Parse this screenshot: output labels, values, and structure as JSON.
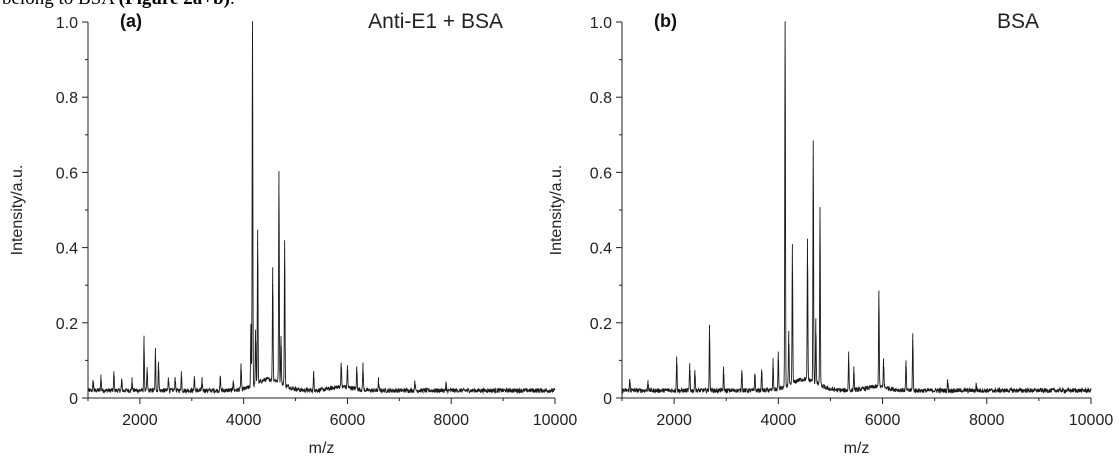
{
  "caption": {
    "text": "belong to BSA ",
    "bold": "(Figure 2a+b)",
    "tail": "."
  },
  "chart_data": [
    {
      "type": "line",
      "panel_label": "(a)",
      "title": "Anti-E1 + BSA",
      "xlabel": "m/z",
      "ylabel": "Intensity/a.u.",
      "xlim": [
        1000,
        10000
      ],
      "ylim": [
        0,
        1.0
      ],
      "x_ticks": [
        2000,
        4000,
        6000,
        8000,
        10000
      ],
      "x_tick_labels": [
        "2000",
        "4000",
        "6000",
        "8000",
        "10000"
      ],
      "y_ticks": [
        0,
        0.2,
        0.4,
        0.6,
        0.8,
        1.0
      ],
      "y_tick_labels": [
        "0",
        "0.2",
        "0.4",
        "0.6",
        "0.8",
        "1.0"
      ],
      "grid": false,
      "baseline": 0.01,
      "peaks": [
        {
          "x": 1100,
          "y": 0.03
        },
        {
          "x": 1250,
          "y": 0.04
        },
        {
          "x": 1500,
          "y": 0.05
        },
        {
          "x": 1650,
          "y": 0.03
        },
        {
          "x": 1850,
          "y": 0.03
        },
        {
          "x": 2080,
          "y": 0.14
        },
        {
          "x": 2140,
          "y": 0.06
        },
        {
          "x": 2300,
          "y": 0.11
        },
        {
          "x": 2360,
          "y": 0.08
        },
        {
          "x": 2550,
          "y": 0.04
        },
        {
          "x": 2680,
          "y": 0.04
        },
        {
          "x": 2800,
          "y": 0.05
        },
        {
          "x": 3050,
          "y": 0.04
        },
        {
          "x": 3200,
          "y": 0.03
        },
        {
          "x": 3550,
          "y": 0.04
        },
        {
          "x": 3800,
          "y": 0.03
        },
        {
          "x": 3950,
          "y": 0.07
        },
        {
          "x": 4140,
          "y": 0.17
        },
        {
          "x": 4170,
          "y": 1.0
        },
        {
          "x": 4230,
          "y": 0.15
        },
        {
          "x": 4270,
          "y": 0.41
        },
        {
          "x": 4560,
          "y": 0.3
        },
        {
          "x": 4680,
          "y": 0.56
        },
        {
          "x": 4720,
          "y": 0.13
        },
        {
          "x": 4790,
          "y": 0.39
        },
        {
          "x": 5350,
          "y": 0.05
        },
        {
          "x": 5880,
          "y": 0.07
        },
        {
          "x": 6000,
          "y": 0.06
        },
        {
          "x": 6180,
          "y": 0.06
        },
        {
          "x": 6300,
          "y": 0.07
        },
        {
          "x": 6600,
          "y": 0.03
        },
        {
          "x": 7300,
          "y": 0.03
        },
        {
          "x": 7900,
          "y": 0.02
        }
      ]
    },
    {
      "type": "line",
      "panel_label": "(b)",
      "title": "BSA",
      "xlabel": "m/z",
      "ylabel": "Intensity/a.u.",
      "xlim": [
        1000,
        10000
      ],
      "ylim": [
        0,
        1.0
      ],
      "x_ticks": [
        2000,
        4000,
        6000,
        8000,
        10000
      ],
      "x_tick_labels": [
        "2000",
        "4000",
        "6000",
        "8000",
        "10000"
      ],
      "y_ticks": [
        0,
        0.2,
        0.4,
        0.6,
        0.8,
        1.0
      ],
      "y_tick_labels": [
        "0",
        "0.2",
        "0.4",
        "0.6",
        "0.8",
        "1.0"
      ],
      "grid": false,
      "baseline": 0.01,
      "peaks": [
        {
          "x": 1150,
          "y": 0.03
        },
        {
          "x": 1500,
          "y": 0.03
        },
        {
          "x": 2050,
          "y": 0.09
        },
        {
          "x": 2300,
          "y": 0.07
        },
        {
          "x": 2400,
          "y": 0.06
        },
        {
          "x": 2680,
          "y": 0.17
        },
        {
          "x": 2950,
          "y": 0.06
        },
        {
          "x": 3300,
          "y": 0.06
        },
        {
          "x": 3550,
          "y": 0.05
        },
        {
          "x": 3680,
          "y": 0.06
        },
        {
          "x": 3900,
          "y": 0.08
        },
        {
          "x": 4000,
          "y": 0.1
        },
        {
          "x": 4130,
          "y": 1.0
        },
        {
          "x": 4200,
          "y": 0.14
        },
        {
          "x": 4270,
          "y": 0.37
        },
        {
          "x": 4560,
          "y": 0.37
        },
        {
          "x": 4670,
          "y": 0.64
        },
        {
          "x": 4720,
          "y": 0.17
        },
        {
          "x": 4800,
          "y": 0.47
        },
        {
          "x": 5350,
          "y": 0.1
        },
        {
          "x": 5450,
          "y": 0.06
        },
        {
          "x": 5930,
          "y": 0.26
        },
        {
          "x": 6020,
          "y": 0.08
        },
        {
          "x": 6450,
          "y": 0.08
        },
        {
          "x": 6580,
          "y": 0.15
        },
        {
          "x": 7250,
          "y": 0.03
        },
        {
          "x": 7800,
          "y": 0.02
        }
      ]
    }
  ]
}
